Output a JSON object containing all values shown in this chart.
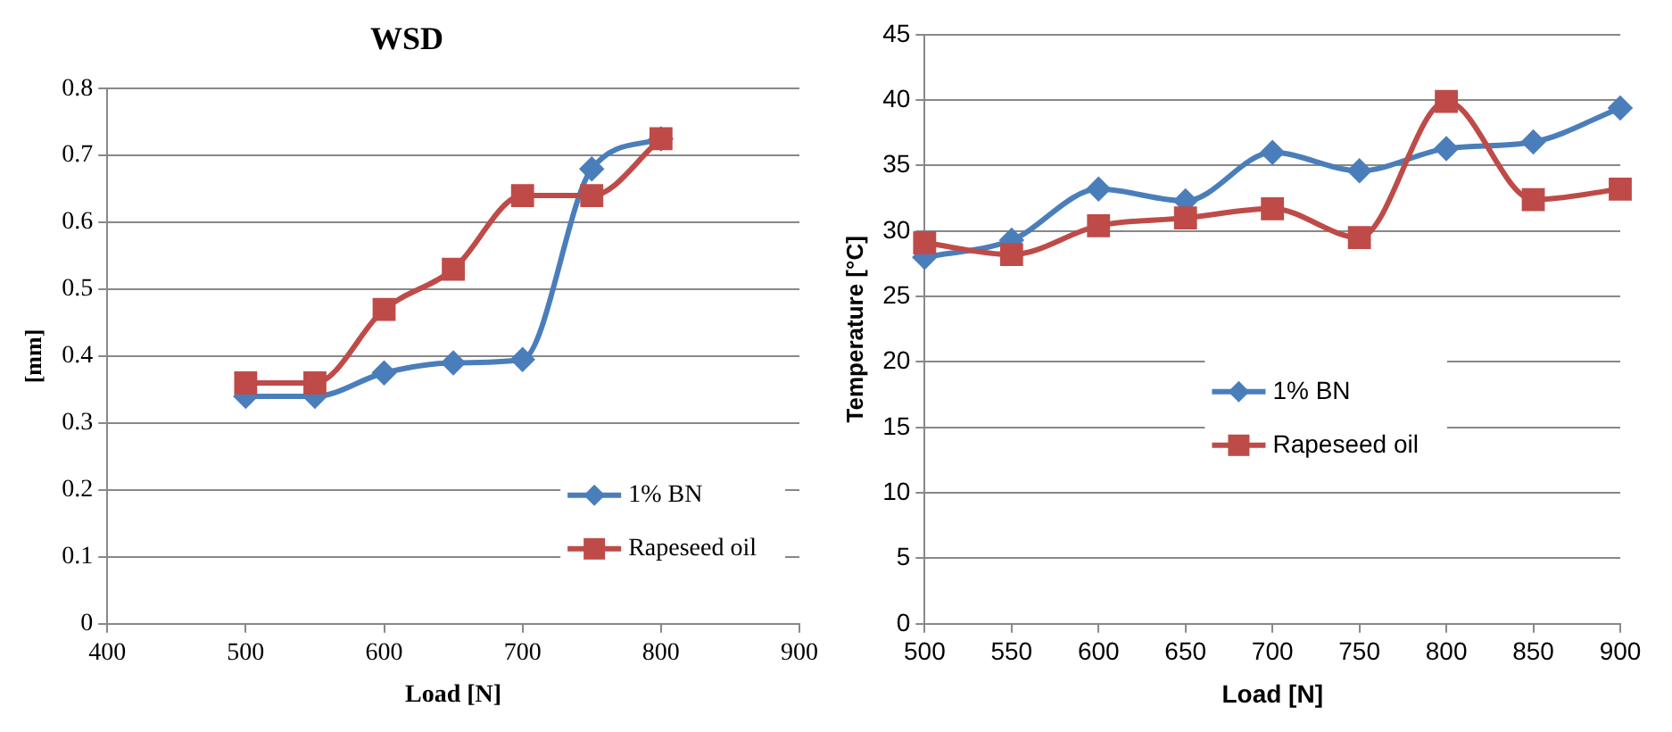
{
  "chart_data": [
    {
      "type": "line",
      "title": "WSD",
      "xlabel": "Load [N]",
      "ylabel": "[mm]",
      "x": [
        500,
        550,
        600,
        650,
        700,
        750,
        800
      ],
      "xlim": [
        400,
        900
      ],
      "xticks": [
        400,
        500,
        600,
        700,
        800,
        900
      ],
      "ylim": [
        0,
        0.8
      ],
      "yticks": [
        0,
        0.1,
        0.2,
        0.3,
        0.4,
        0.5,
        0.6,
        0.7,
        0.8
      ],
      "grid": "y",
      "legend": "bottom right",
      "series": [
        {
          "name": "1% BN",
          "color": "#4a7ebb",
          "marker": "diamond",
          "values": [
            0.34,
            0.34,
            0.375,
            0.39,
            0.395,
            0.68,
            0.725
          ]
        },
        {
          "name": "Rapeseed oil",
          "color": "#be4b48",
          "marker": "square",
          "values": [
            0.36,
            0.36,
            0.47,
            0.53,
            0.64,
            0.64,
            0.725
          ]
        }
      ]
    },
    {
      "type": "line",
      "xlabel": "Load [N]",
      "ylabel": "Temperature [°C]",
      "x": [
        500,
        550,
        600,
        650,
        700,
        750,
        800,
        850,
        900
      ],
      "xlim": [
        500,
        900
      ],
      "xticks": [
        500,
        550,
        600,
        650,
        700,
        750,
        800,
        850,
        900
      ],
      "ylim": [
        0,
        45
      ],
      "yticks": [
        0,
        5,
        10,
        15,
        20,
        25,
        30,
        35,
        40,
        45
      ],
      "grid": "y",
      "legend": "center",
      "series": [
        {
          "name": "1% BN",
          "color": "#4a7ebb",
          "marker": "diamond",
          "values": [
            28,
            29.3,
            33.2,
            32.3,
            36,
            34.6,
            36.3,
            36.8,
            39.4
          ]
        },
        {
          "name": "Rapeseed oil",
          "color": "#be4b48",
          "marker": "square",
          "values": [
            29.1,
            28.2,
            30.4,
            31,
            31.7,
            29.5,
            39.9,
            32.4,
            33.2
          ]
        }
      ]
    }
  ]
}
